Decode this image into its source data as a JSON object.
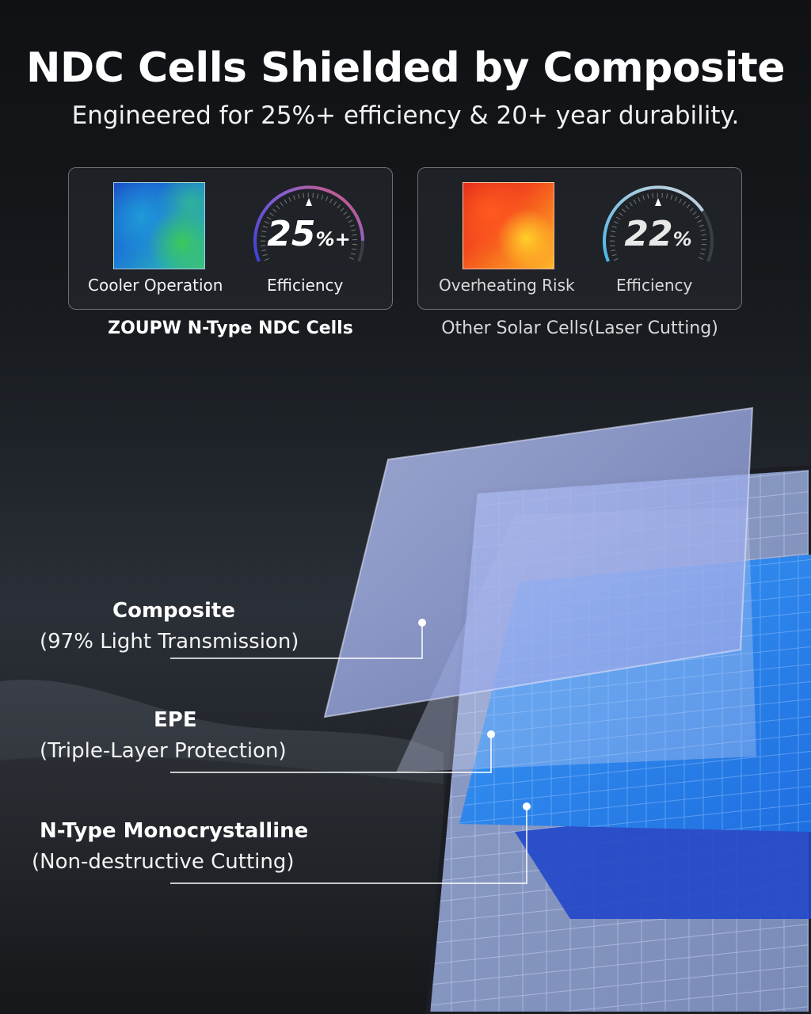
{
  "header": {
    "title": "NDC Cells Shielded by Composite",
    "subtitle": "Engineered for 25%+ efficiency & 20+ year durability."
  },
  "comparison": {
    "left": {
      "swatch_label": "Cooler Operation",
      "gauge_value": "25",
      "gauge_unit": "%+",
      "gauge_label": "Efficiency",
      "caption": "ZOUPW N-Type NDC Cells",
      "gauge_level": 0.9
    },
    "right": {
      "swatch_label": "Overheating Risk",
      "gauge_value": "22",
      "gauge_unit": "%",
      "gauge_label": "Efficiency",
      "caption": "Other Solar Cells(Laser Cutting)",
      "gauge_level": 0.75
    }
  },
  "layers": [
    {
      "title": "Composite",
      "detail": "(97% Light Transmission)"
    },
    {
      "title": "EPE",
      "detail": "(Triple-Layer Protection)"
    },
    {
      "title": "N-Type Monocrystalline",
      "detail": "(Non-destructive Cutting)"
    }
  ],
  "colors": {
    "cell_blue": "#2f8cf0",
    "composite_tint": "#a9b8f0",
    "gauge_left_start": "#3b3fd6",
    "gauge_left_end": "#e45a6a",
    "gauge_right": "#4ab7e8"
  }
}
